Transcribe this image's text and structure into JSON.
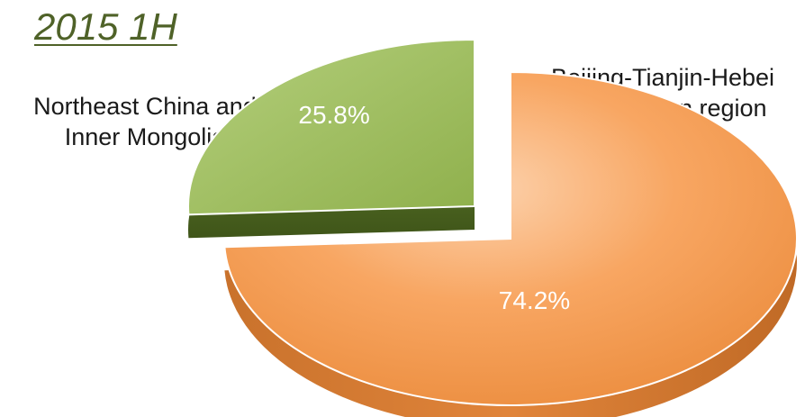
{
  "chart_data": {
    "type": "pie",
    "title": "2015 1H",
    "slices": [
      {
        "label_line1": "Beijing-Tianjin-Hebei",
        "label_line2": "metropolitan region",
        "value": 74.2,
        "value_label": "74.2%",
        "color": "#f79646"
      },
      {
        "label_line1": "Northeast China and",
        "label_line2": "Inner Mongolia",
        "value": 25.8,
        "value_label": "25.8%",
        "color": "#9bbb59"
      }
    ],
    "legend": "none",
    "style": "3d-exploded"
  }
}
